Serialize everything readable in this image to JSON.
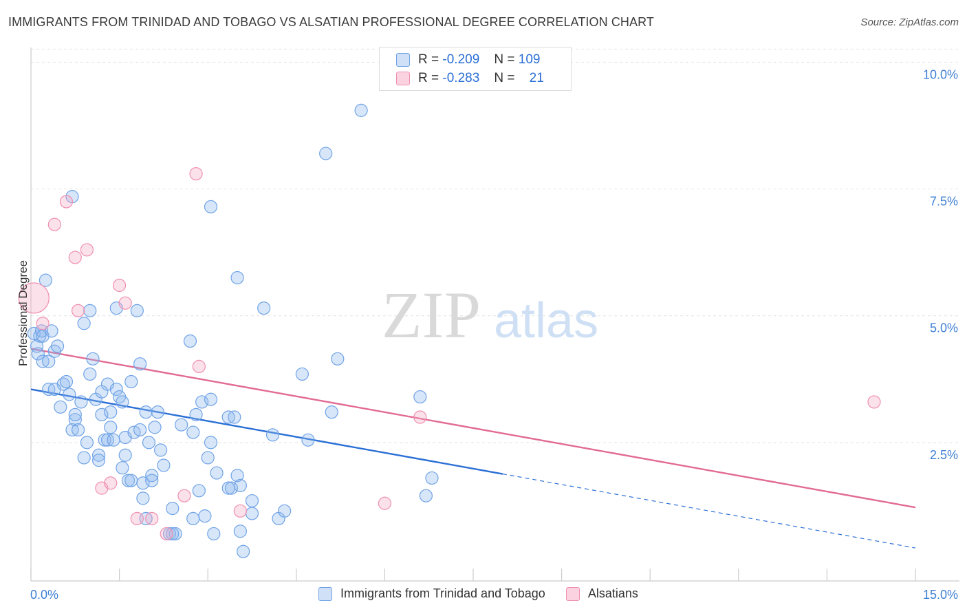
{
  "title": "IMMIGRANTS FROM TRINIDAD AND TOBAGO VS ALSATIAN PROFESSIONAL DEGREE CORRELATION CHART",
  "source": "Source: ZipAtlas.com",
  "watermark": {
    "zip": "ZIP",
    "atlas": "atlas"
  },
  "legend_top": [
    {
      "r_label": "R =",
      "r_value": "-0.209",
      "n_label": "N =",
      "n_value": "109",
      "color": "#6fa3e6"
    },
    {
      "r_label": "R =",
      "r_value": "-0.283",
      "n_label": "N =",
      "n_value": "21",
      "color": "#f08fb0"
    }
  ],
  "bottom_legend": [
    {
      "label": "Immigrants from Trinidad and Tobago",
      "color": "#6fa3e6"
    },
    {
      "label": "Alsatians",
      "color": "#f08fb0"
    }
  ],
  "chart_data": {
    "type": "scatter",
    "xlabel": "",
    "ylabel": "Professional Degree",
    "xlim": [
      0,
      15
    ],
    "ylim": [
      0,
      10.25
    ],
    "x_tick_labels": [
      "0.0%",
      "15.0%"
    ],
    "y_ticks": [
      2.5,
      5.0,
      7.5,
      10.0
    ],
    "y_tick_labels": [
      "2.5%",
      "5.0%",
      "7.5%",
      "10.0%"
    ],
    "grid": "horizontal dashed",
    "legend": "top-center",
    "series": [
      {
        "name": "Immigrants from Trinidad and Tobago",
        "color": "#6fa3e6",
        "line_color": "#2a6fd6",
        "trend": {
          "x0": 0,
          "y0": 3.55,
          "x1": 8.0,
          "y1": 1.88,
          "dash_to_x": 15,
          "dash_to_y": 0.42
        },
        "points": [
          [
            0.05,
            4.65
          ],
          [
            0.1,
            4.4
          ],
          [
            0.12,
            4.25
          ],
          [
            0.15,
            4.6
          ],
          [
            0.18,
            4.7
          ],
          [
            0.2,
            4.6
          ],
          [
            0.25,
            5.7
          ],
          [
            0.2,
            4.1
          ],
          [
            0.3,
            4.1
          ],
          [
            0.35,
            4.7
          ],
          [
            0.4,
            4.3
          ],
          [
            0.45,
            4.4
          ],
          [
            0.55,
            3.65
          ],
          [
            0.6,
            3.7
          ],
          [
            0.3,
            3.55
          ],
          [
            0.4,
            3.55
          ],
          [
            0.5,
            3.2
          ],
          [
            0.65,
            3.45
          ],
          [
            0.7,
            2.75
          ],
          [
            0.75,
            2.95
          ],
          [
            0.75,
            3.05
          ],
          [
            0.8,
            2.75
          ],
          [
            0.85,
            3.3
          ],
          [
            0.9,
            2.2
          ],
          [
            0.95,
            2.5
          ],
          [
            1.0,
            5.1
          ],
          [
            0.9,
            4.85
          ],
          [
            0.7,
            7.35
          ],
          [
            1.0,
            3.85
          ],
          [
            1.05,
            4.15
          ],
          [
            1.1,
            3.35
          ],
          [
            1.15,
            2.25
          ],
          [
            1.15,
            2.15
          ],
          [
            1.2,
            3.05
          ],
          [
            1.2,
            3.5
          ],
          [
            1.25,
            2.55
          ],
          [
            1.3,
            3.65
          ],
          [
            1.3,
            2.55
          ],
          [
            1.35,
            2.8
          ],
          [
            1.35,
            3.1
          ],
          [
            1.4,
            2.55
          ],
          [
            1.45,
            5.15
          ],
          [
            1.45,
            3.55
          ],
          [
            1.5,
            3.4
          ],
          [
            1.55,
            3.3
          ],
          [
            1.55,
            2.0
          ],
          [
            1.6,
            2.6
          ],
          [
            1.6,
            2.25
          ],
          [
            1.65,
            1.75
          ],
          [
            1.7,
            3.7
          ],
          [
            1.7,
            1.75
          ],
          [
            1.75,
            2.7
          ],
          [
            1.8,
            5.1
          ],
          [
            1.85,
            4.05
          ],
          [
            1.85,
            2.75
          ],
          [
            1.9,
            1.7
          ],
          [
            1.9,
            1.4
          ],
          [
            1.95,
            1.0
          ],
          [
            1.95,
            3.1
          ],
          [
            2.0,
            2.5
          ],
          [
            2.05,
            1.85
          ],
          [
            2.05,
            1.75
          ],
          [
            2.1,
            2.8
          ],
          [
            2.15,
            3.1
          ],
          [
            2.2,
            2.35
          ],
          [
            2.25,
            2.05
          ],
          [
            2.35,
            0.7
          ],
          [
            2.4,
            1.2
          ],
          [
            2.45,
            0.7
          ],
          [
            2.4,
            0.7
          ],
          [
            2.55,
            2.85
          ],
          [
            2.7,
            4.5
          ],
          [
            2.75,
            2.7
          ],
          [
            2.75,
            1.0
          ],
          [
            2.8,
            3.05
          ],
          [
            2.85,
            1.55
          ],
          [
            2.9,
            3.3
          ],
          [
            2.95,
            1.05
          ],
          [
            3.0,
            2.2
          ],
          [
            3.05,
            3.35
          ],
          [
            3.05,
            2.5
          ],
          [
            3.1,
            0.7
          ],
          [
            3.15,
            1.9
          ],
          [
            3.05,
            7.15
          ],
          [
            3.35,
            1.6
          ],
          [
            3.35,
            3.0
          ],
          [
            3.4,
            1.6
          ],
          [
            3.45,
            3.0
          ],
          [
            3.5,
            1.85
          ],
          [
            3.55,
            1.65
          ],
          [
            3.55,
            0.75
          ],
          [
            3.6,
            0.35
          ],
          [
            3.5,
            5.75
          ],
          [
            3.75,
            1.35
          ],
          [
            3.75,
            1.1
          ],
          [
            3.95,
            5.15
          ],
          [
            4.1,
            2.65
          ],
          [
            4.2,
            1.0
          ],
          [
            4.3,
            1.15
          ],
          [
            4.6,
            3.85
          ],
          [
            4.7,
            2.55
          ],
          [
            5.0,
            8.2
          ],
          [
            5.1,
            3.1
          ],
          [
            5.2,
            4.15
          ],
          [
            5.6,
            9.05
          ],
          [
            6.6,
            3.4
          ],
          [
            6.7,
            1.45
          ],
          [
            6.8,
            1.8
          ]
        ]
      },
      {
        "name": "Alsatians",
        "color": "#f08fb0",
        "line_color": "#e26a93",
        "trend": {
          "x0": 0,
          "y0": 4.35,
          "x1": 15,
          "y1": 1.22
        },
        "points": [
          [
            0.05,
            5.35
          ],
          [
            0.2,
            4.85
          ],
          [
            0.6,
            7.25
          ],
          [
            0.4,
            6.8
          ],
          [
            0.75,
            6.15
          ],
          [
            0.95,
            6.3
          ],
          [
            0.8,
            5.1
          ],
          [
            1.5,
            5.6
          ],
          [
            1.6,
            5.25
          ],
          [
            1.2,
            1.6
          ],
          [
            1.35,
            1.7
          ],
          [
            1.8,
            1.0
          ],
          [
            2.05,
            1.0
          ],
          [
            2.3,
            0.7
          ],
          [
            2.6,
            1.45
          ],
          [
            2.8,
            7.8
          ],
          [
            2.85,
            4.0
          ],
          [
            3.55,
            1.15
          ],
          [
            6.0,
            1.3
          ],
          [
            6.6,
            3.0
          ],
          [
            14.3,
            3.3
          ]
        ]
      }
    ]
  }
}
